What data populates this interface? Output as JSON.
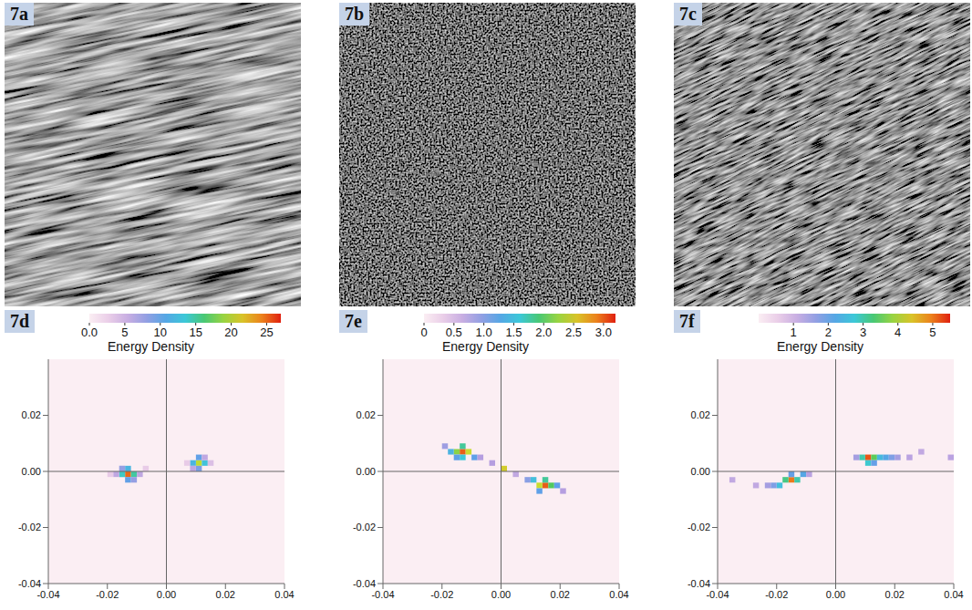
{
  "images": [
    {
      "label": "7a"
    },
    {
      "label": "7b"
    },
    {
      "label": "7c"
    }
  ],
  "chart_data": [
    {
      "type": "heatmap",
      "label": "7d",
      "xlim": [
        -0.04,
        0.04
      ],
      "ylim": [
        -0.04,
        0.04
      ],
      "xticks": [
        -0.04,
        -0.02,
        {
          "value": 0,
          "label": "0.00"
        },
        0.02,
        0.04
      ],
      "yticks": [
        -0.04,
        -0.02,
        {
          "value": 0,
          "label": "0.00"
        },
        0.02
      ],
      "cell_size": 0.002,
      "cells": [
        [
          -0.013,
          -0.001,
          25
        ],
        [
          -0.015,
          -0.001,
          14
        ],
        [
          -0.011,
          -0.001,
          15
        ],
        [
          -0.013,
          0.001,
          12
        ],
        [
          -0.013,
          -0.003,
          10
        ],
        [
          -0.015,
          0.001,
          8
        ],
        [
          -0.011,
          -0.003,
          8
        ],
        [
          -0.017,
          -0.001,
          6
        ],
        [
          -0.009,
          -0.001,
          6
        ],
        [
          -0.019,
          -0.001,
          3
        ],
        [
          -0.007,
          0.001,
          3
        ],
        [
          0.011,
          0.003,
          20
        ],
        [
          0.013,
          0.003,
          13
        ],
        [
          0.009,
          0.003,
          12
        ],
        [
          0.011,
          0.005,
          10
        ],
        [
          0.011,
          0.001,
          9
        ],
        [
          0.013,
          0.005,
          6
        ],
        [
          0.009,
          0.001,
          6
        ],
        [
          0.015,
          0.003,
          4
        ],
        [
          0.007,
          0.003,
          3
        ]
      ],
      "colorbar": {
        "label": "Energy Density",
        "range": [
          0,
          27
        ],
        "ticks": [
          {
            "value": 0,
            "label": "0.0"
          },
          5,
          10,
          15,
          20,
          25
        ]
      }
    },
    {
      "type": "heatmap",
      "label": "7e",
      "xlim": [
        -0.04,
        0.04
      ],
      "ylim": [
        -0.04,
        0.04
      ],
      "xticks": [
        -0.04,
        -0.02,
        {
          "value": 0,
          "label": "0.00"
        },
        0.02,
        0.04
      ],
      "yticks": [
        -0.04,
        -0.02,
        {
          "value": 0,
          "label": "0.00"
        },
        0.02
      ],
      "cell_size": 0.002,
      "cells": [
        [
          -0.013,
          0.007,
          3.0
        ],
        [
          -0.015,
          0.007,
          2.2
        ],
        [
          -0.011,
          0.007,
          2.4
        ],
        [
          -0.013,
          0.009,
          1.8
        ],
        [
          -0.013,
          0.005,
          1.6
        ],
        [
          -0.017,
          0.007,
          1.4
        ],
        [
          -0.009,
          0.005,
          1.2
        ],
        [
          -0.019,
          0.009,
          0.9
        ],
        [
          -0.007,
          0.005,
          0.8
        ],
        [
          -0.015,
          0.005,
          1.2
        ],
        [
          0.015,
          -0.005,
          3.0
        ],
        [
          0.013,
          -0.005,
          2.4
        ],
        [
          0.017,
          -0.005,
          2.0
        ],
        [
          0.015,
          -0.003,
          1.8
        ],
        [
          0.011,
          -0.003,
          1.5
        ],
        [
          0.019,
          -0.005,
          1.2
        ],
        [
          0.009,
          -0.003,
          1.0
        ],
        [
          0.013,
          -0.007,
          1.2
        ],
        [
          0.021,
          -0.007,
          0.8
        ],
        [
          0.005,
          -0.001,
          0.7
        ],
        [
          0.001,
          0.001,
          2.5
        ],
        [
          -0.003,
          0.003,
          0.8
        ]
      ],
      "colorbar": {
        "label": "Energy Density",
        "range": [
          0,
          3.2
        ],
        "ticks": [
          0,
          0.5,
          {
            "value": 1,
            "label": "1.0"
          },
          1.5,
          {
            "value": 2,
            "label": "2.0"
          },
          2.5,
          {
            "value": 3,
            "label": "3.0"
          }
        ]
      }
    },
    {
      "type": "heatmap",
      "label": "7f",
      "xlim": [
        -0.04,
        0.04
      ],
      "ylim": [
        -0.04,
        0.04
      ],
      "xticks": [
        -0.04,
        -0.02,
        {
          "value": 0,
          "label": "0.00"
        },
        0.02,
        0.04
      ],
      "yticks": [
        -0.04,
        -0.02,
        {
          "value": 0,
          "label": "0.00"
        },
        0.02
      ],
      "cell_size": 0.002,
      "cells": [
        [
          0.011,
          0.005,
          5.2
        ],
        [
          0.009,
          0.005,
          3.0
        ],
        [
          0.013,
          0.005,
          3.5
        ],
        [
          0.015,
          0.005,
          2.5
        ],
        [
          0.017,
          0.005,
          2.2
        ],
        [
          0.011,
          0.003,
          2.8
        ],
        [
          0.013,
          0.003,
          2.0
        ],
        [
          0.019,
          0.005,
          1.8
        ],
        [
          0.021,
          0.005,
          1.5
        ],
        [
          0.025,
          0.005,
          1.3
        ],
        [
          0.029,
          0.007,
          1.2
        ],
        [
          0.039,
          0.005,
          1.3
        ],
        [
          0.007,
          0.005,
          1.5
        ],
        [
          -0.015,
          -0.003,
          5.0
        ],
        [
          -0.017,
          -0.003,
          3.2
        ],
        [
          -0.013,
          -0.003,
          3.0
        ],
        [
          -0.019,
          -0.005,
          2.6
        ],
        [
          -0.011,
          -0.001,
          2.2
        ],
        [
          -0.015,
          -0.001,
          2.0
        ],
        [
          -0.021,
          -0.005,
          1.8
        ],
        [
          -0.023,
          -0.005,
          1.5
        ],
        [
          -0.009,
          -0.001,
          1.3
        ],
        [
          -0.027,
          -0.005,
          1.2
        ],
        [
          -0.035,
          -0.003,
          1.2
        ]
      ],
      "colorbar": {
        "label": "Energy Density",
        "range": [
          0,
          5.5
        ],
        "ticks": [
          1,
          2,
          3,
          4,
          5
        ]
      }
    }
  ]
}
